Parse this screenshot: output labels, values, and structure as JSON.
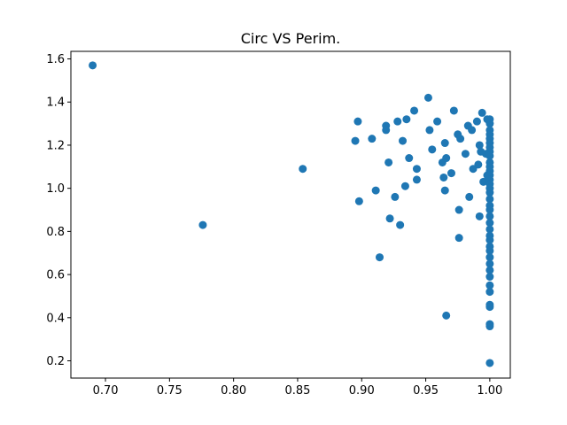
{
  "chart_data": {
    "type": "scatter",
    "title": "Circ VS Perim.",
    "xlabel": "",
    "ylabel": "",
    "xlim": [
      0.673,
      1.016
    ],
    "ylim": [
      0.12,
      1.635
    ],
    "x_ticks": [
      "0.70",
      "0.75",
      "0.80",
      "0.85",
      "0.90",
      "0.95",
      "1.00"
    ],
    "y_ticks": [
      "0.2",
      "0.4",
      "0.6",
      "0.8",
      "1.0",
      "1.2",
      "1.4",
      "1.6"
    ],
    "grid": false,
    "color": "#1f77b4",
    "x": [
      0.69,
      0.776,
      0.854,
      0.895,
      0.897,
      0.898,
      0.908,
      0.911,
      0.914,
      0.919,
      0.919,
      0.921,
      0.922,
      0.926,
      0.928,
      0.93,
      0.932,
      0.934,
      0.935,
      0.937,
      0.941,
      0.943,
      0.943,
      0.952,
      0.953,
      0.955,
      0.959,
      0.963,
      0.964,
      0.965,
      0.965,
      0.966,
      0.966,
      0.97,
      0.972,
      0.975,
      0.976,
      0.976,
      0.977,
      0.981,
      0.983,
      0.984,
      0.986,
      0.987,
      0.99,
      0.991,
      0.992,
      0.992,
      0.993,
      0.994,
      0.995,
      0.997,
      0.998,
      0.998,
      1.0,
      1.0,
      1.0,
      1.0,
      1.0,
      1.0,
      1.0,
      1.0,
      1.0,
      1.0,
      1.0,
      1.0,
      1.0,
      1.0,
      1.0,
      1.0,
      1.0,
      1.0,
      1.0,
      1.0,
      1.0,
      1.0,
      1.0,
      1.0,
      1.0,
      1.0,
      1.0,
      1.0,
      1.0,
      1.0,
      1.0,
      1.0,
      1.0,
      1.0,
      1.0,
      1.0,
      1.0,
      1.0
    ],
    "y": [
      1.57,
      0.83,
      1.09,
      1.22,
      1.31,
      0.94,
      1.23,
      0.99,
      0.68,
      1.29,
      1.27,
      1.12,
      0.86,
      0.96,
      1.31,
      0.83,
      1.22,
      1.01,
      1.32,
      1.14,
      1.36,
      1.09,
      1.04,
      1.42,
      1.27,
      1.18,
      1.31,
      1.12,
      1.05,
      0.99,
      1.21,
      1.14,
      0.41,
      1.07,
      1.36,
      1.25,
      0.9,
      0.77,
      1.23,
      1.16,
      1.29,
      0.96,
      1.27,
      1.09,
      1.31,
      1.11,
      1.2,
      0.87,
      1.17,
      1.35,
      1.03,
      1.16,
      1.32,
      1.06,
      1.32,
      1.3,
      1.27,
      1.25,
      1.23,
      1.21,
      1.19,
      1.17,
      1.15,
      1.12,
      1.1,
      1.08,
      1.06,
      1.04,
      1.02,
      1.0,
      0.98,
      0.95,
      0.92,
      0.9,
      0.87,
      0.84,
      0.81,
      0.78,
      0.76,
      0.73,
      0.71,
      0.68,
      0.65,
      0.62,
      0.59,
      0.55,
      0.52,
      0.46,
      0.45,
      0.37,
      0.36,
      0.19
    ]
  }
}
